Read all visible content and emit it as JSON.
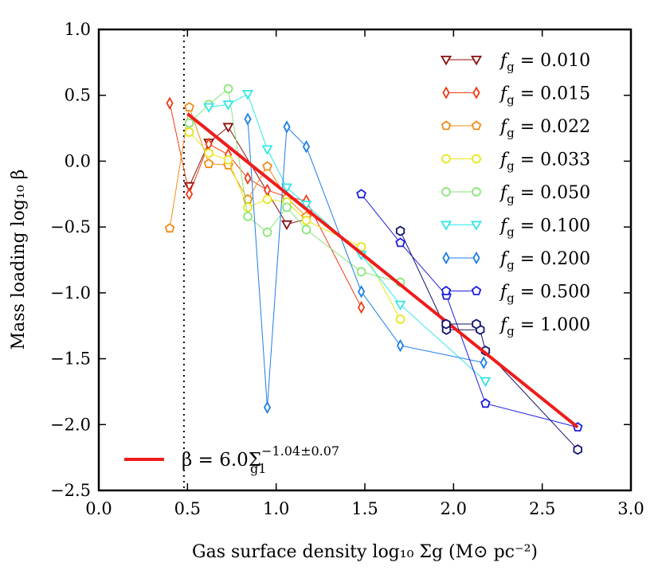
{
  "chart_data": {
    "type": "line",
    "title": "",
    "xlabel": "Gas surface density  log₁₀ Σg (M⊙ pc⁻²)",
    "ylabel": "Mass loading  log₁₀ β",
    "xlim": [
      0.0,
      3.0
    ],
    "ylim": [
      -2.5,
      1.0
    ],
    "x_ticks": [
      0.0,
      0.5,
      1.0,
      1.5,
      2.0,
      2.5,
      3.0
    ],
    "x_tick_labels": [
      "0.0",
      "0.5",
      "1.0",
      "1.5",
      "2.0",
      "2.5",
      "3.0"
    ],
    "y_ticks": [
      1.0,
      0.5,
      0.0,
      -0.5,
      -1.0,
      -1.5,
      -2.0,
      -2.5
    ],
    "y_tick_labels": [
      "1.0",
      "0.5",
      "0.0",
      "−0.5",
      "−1.0",
      "−1.5",
      "−2.0",
      "−2.5"
    ],
    "grid": false,
    "legend_position": "top-right",
    "vertical_line": {
      "x": 0.48,
      "style": "dotted",
      "color": "#000000"
    },
    "fit_line": {
      "label_prefix": "β = 6.0Σ",
      "label_sub": "g1",
      "label_sup": "−1.04±0.07",
      "x": [
        0.5,
        2.7
      ],
      "y": [
        0.36,
        -2.02
      ],
      "color": "#ee1c1c"
    },
    "series": [
      {
        "name": "fg = 0.010",
        "label_value": "0.010",
        "color": "#8b0f0f",
        "marker": "triangle-down",
        "x": [
          0.51,
          0.62,
          0.73,
          1.06,
          1.17
        ],
        "y": [
          -0.19,
          0.14,
          0.26,
          -0.48,
          -0.44
        ]
      },
      {
        "name": "fg = 0.015",
        "label_value": "0.015",
        "color": "#ee3b18",
        "marker": "diamond",
        "x": [
          0.4,
          0.51,
          0.62,
          0.73,
          0.84,
          0.95,
          1.06,
          1.17,
          1.48
        ],
        "y": [
          0.44,
          -0.25,
          0.13,
          0.05,
          -0.13,
          -0.22,
          -0.27,
          -0.3,
          -1.11
        ]
      },
      {
        "name": "fg = 0.022",
        "label_value": "0.022",
        "color": "#f08c18",
        "marker": "pentagon",
        "x": [
          0.4,
          0.51,
          0.62,
          0.73,
          0.84,
          0.95,
          1.06,
          1.17
        ],
        "y": [
          -0.51,
          0.41,
          -0.02,
          -0.03,
          -0.29,
          -0.04,
          -0.28,
          -0.42
        ]
      },
      {
        "name": "fg = 0.033",
        "label_value": "0.033",
        "color": "#e6e619",
        "marker": "circle",
        "x": [
          0.51,
          0.62,
          0.73,
          0.84,
          0.95,
          1.06,
          1.17,
          1.48,
          1.7
        ],
        "y": [
          0.22,
          0.06,
          0.01,
          -0.35,
          -0.29,
          -0.31,
          -0.45,
          -0.65,
          -1.2
        ]
      },
      {
        "name": "fg = 0.050",
        "label_value": "0.050",
        "color": "#88e678",
        "marker": "circle",
        "x": [
          0.51,
          0.62,
          0.73,
          0.84,
          0.95,
          1.06,
          1.17,
          1.48,
          1.7
        ],
        "y": [
          0.29,
          0.43,
          0.55,
          -0.42,
          -0.54,
          -0.35,
          -0.52,
          -0.84,
          -0.92
        ]
      },
      {
        "name": "fg = 0.100",
        "label_value": "0.100",
        "color": "#34e6e6",
        "marker": "triangle-down",
        "x": [
          0.62,
          0.73,
          0.84,
          0.95,
          1.06,
          1.17,
          1.48,
          1.7,
          2.18
        ],
        "y": [
          0.41,
          0.43,
          0.51,
          0.09,
          -0.2,
          -0.33,
          -0.71,
          -1.09,
          -1.67
        ]
      },
      {
        "name": "fg = 0.200",
        "label_value": "0.200",
        "color": "#1c7ee6",
        "marker": "diamond",
        "x": [
          0.84,
          0.95,
          1.06,
          1.17,
          1.48,
          1.7,
          2.17
        ],
        "y": [
          0.32,
          -1.87,
          0.26,
          0.11,
          -0.99,
          -1.4,
          -1.53
        ]
      },
      {
        "name": "fg = 0.500",
        "label_value": "0.500",
        "color": "#1c1ce0",
        "marker": "pentagon",
        "x": [
          1.48,
          1.7,
          1.96,
          2.18,
          2.7
        ],
        "y": [
          -0.25,
          -0.62,
          -1.02,
          -1.84,
          -2.02
        ]
      },
      {
        "name": "fg = 1.000",
        "label_value": "1.000",
        "color": "#12126e",
        "marker": "hexagon",
        "x": [
          1.7,
          1.96,
          2.15,
          2.18,
          2.7
        ],
        "y": [
          -0.53,
          -1.28,
          -1.28,
          -1.44,
          -2.19
        ]
      }
    ]
  }
}
